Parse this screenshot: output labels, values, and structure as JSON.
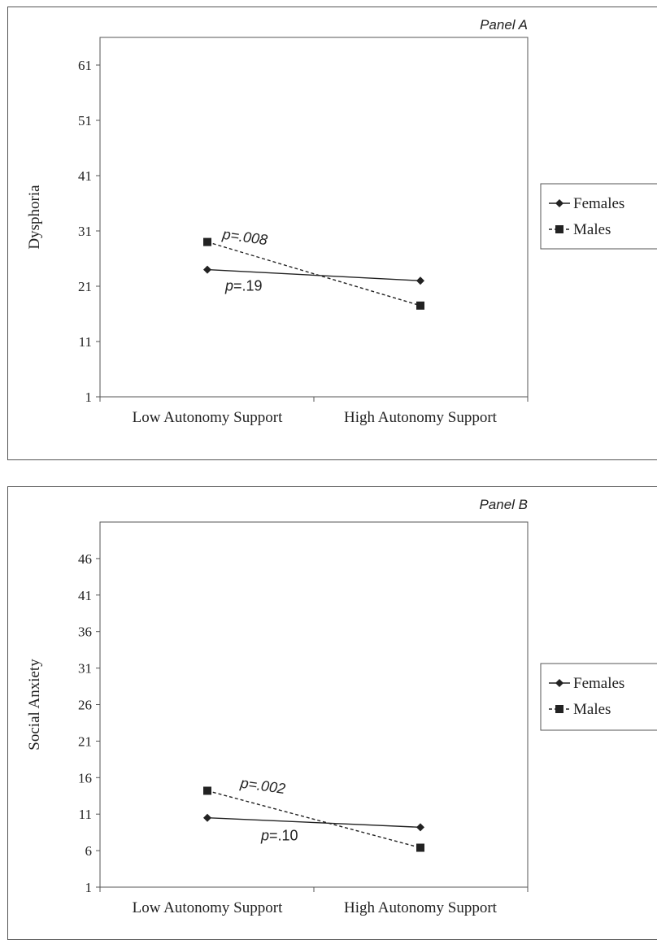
{
  "colors": {
    "line": "#222222",
    "axis": "#555555",
    "frame": "#555555"
  },
  "chart_data": [
    {
      "type": "line",
      "panel": "Panel A",
      "ylabel": "Dysphoria",
      "xlabel": "",
      "categories": [
        "Low Autonomy Support",
        "High Autonomy Support"
      ],
      "ylim": [
        1,
        66
      ],
      "yticks": [
        "1",
        "11",
        "21",
        "31",
        "41",
        "51",
        "61"
      ],
      "grid": false,
      "legend_position": "right",
      "series": [
        {
          "name": "Females",
          "values": [
            24,
            22
          ],
          "marker": "diamond",
          "style": "solid"
        },
        {
          "name": "Males",
          "values": [
            29,
            17.5
          ],
          "marker": "square",
          "style": "dashed"
        }
      ],
      "annotations": [
        {
          "text": "p=.008",
          "series": "Males"
        },
        {
          "text": "p=.19",
          "series": "Females"
        }
      ]
    },
    {
      "type": "line",
      "panel": "Panel B",
      "ylabel": "Social Anxiety",
      "xlabel": "",
      "categories": [
        "Low Autonomy Support",
        "High Autonomy Support"
      ],
      "ylim": [
        1,
        51
      ],
      "yticks": [
        "1",
        "6",
        "11",
        "16",
        "21",
        "26",
        "31",
        "36",
        "41",
        "46"
      ],
      "grid": false,
      "legend_position": "right",
      "series": [
        {
          "name": "Females",
          "values": [
            10.5,
            9.2
          ],
          "marker": "diamond",
          "style": "solid"
        },
        {
          "name": "Males",
          "values": [
            14.2,
            6.4
          ],
          "marker": "square",
          "style": "dashed"
        }
      ],
      "annotations": [
        {
          "text": "p=.002",
          "series": "Males"
        },
        {
          "text": "p=.10",
          "series": "Females"
        }
      ]
    }
  ]
}
